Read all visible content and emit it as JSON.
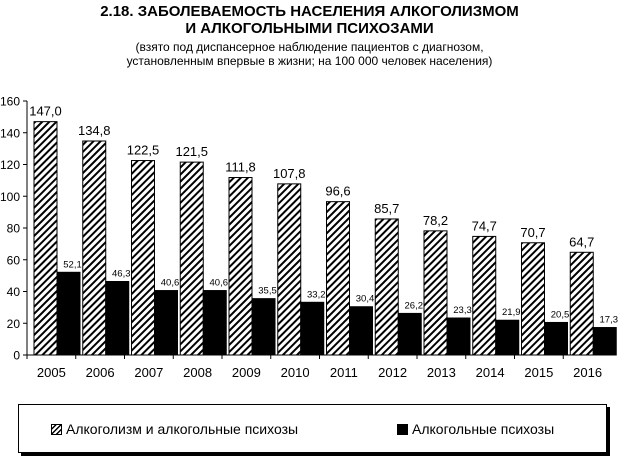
{
  "title_line1": "2.18. ЗАБОЛЕВАЕМОСТЬ НАСЕЛЕНИЯ АЛКОГОЛИЗМОМ",
  "title_line2": "И АЛКОГОЛЬНЫМИ ПСИХОЗАМИ",
  "subtitle_line1": "(взято под диспансерное наблюдение пациентов с диагнозом,",
  "subtitle_line2": "установленным впервые в жизни; на 100 000 человек населения)",
  "chart_data": {
    "type": "bar",
    "categories": [
      "2005",
      "2006",
      "2007",
      "2008",
      "2009",
      "2010",
      "2011",
      "2012",
      "2013",
      "2014",
      "2015",
      "2016"
    ],
    "series": [
      {
        "name": "Алкоголизм и алкогольные психозы",
        "fill": "hatched",
        "values": [
          147.0,
          134.8,
          122.5,
          121.5,
          111.8,
          107.8,
          96.6,
          85.7,
          78.2,
          74.7,
          70.7,
          64.7
        ],
        "labels": [
          "147,0",
          "134,8",
          "122,5",
          "121,5",
          "111,8",
          "107,8",
          "96,6",
          "85,7",
          "78,2",
          "74,7",
          "70,7",
          "64,7"
        ]
      },
      {
        "name": "Алкогольные психозы",
        "fill": "solid",
        "color": "#000000",
        "values": [
          52.1,
          46.3,
          40.6,
          40.6,
          35.5,
          33.2,
          30.4,
          26.2,
          23.3,
          21.9,
          20.5,
          17.3
        ],
        "labels": [
          "52,1",
          "46,3",
          "40,6",
          "40,6",
          "35,5",
          "33,2",
          "30,4",
          "26,2",
          "23,3",
          "21,9",
          "20,5",
          "17,3"
        ]
      }
    ],
    "yticks": [
      0,
      20,
      40,
      60,
      80,
      100,
      120,
      140,
      160
    ],
    "ylim": [
      0,
      160
    ],
    "grid": false,
    "legend": "bottom"
  }
}
